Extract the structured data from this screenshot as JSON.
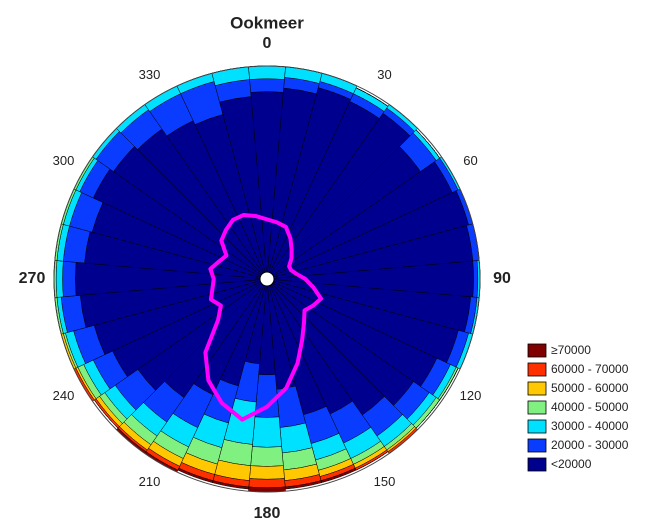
{
  "chart_data": {
    "type": "polar-stacked-bar",
    "title": "Ookmeer",
    "theta": [
      0,
      10,
      20,
      30,
      40,
      50,
      60,
      70,
      80,
      90,
      100,
      110,
      120,
      130,
      140,
      150,
      160,
      170,
      180,
      190,
      200,
      210,
      220,
      230,
      240,
      250,
      260,
      270,
      280,
      290,
      300,
      310,
      320,
      330,
      340,
      350
    ],
    "thetaticks": [
      0,
      30,
      60,
      90,
      120,
      150,
      180,
      210,
      240,
      270,
      300,
      330
    ],
    "rlim": [
      0,
      100
    ],
    "series": [
      {
        "name": "<20000",
        "color": "#00008f",
        "values": [
          88,
          90,
          93,
          92,
          95,
          88,
          96,
          98,
          97,
          97,
          96,
          93,
          88,
          84,
          78,
          70,
          66,
          52,
          45,
          40,
          52,
          60,
          68,
          74,
          80,
          84,
          88,
          90,
          86,
          85,
          90,
          88,
          86,
          82,
          80,
          86
        ]
      },
      {
        "name": "20000 - 30000",
        "color": "#0a3cff",
        "values": [
          6,
          5,
          3,
          4,
          3,
          9,
          3,
          2,
          3,
          2,
          3,
          5,
          7,
          9,
          12,
          15,
          14,
          18,
          20,
          18,
          18,
          17,
          14,
          13,
          10,
          10,
          9,
          6,
          10,
          11,
          7,
          10,
          11,
          14,
          16,
          8
        ]
      },
      {
        "name": "30000 - 40000",
        "color": "#00e0ff",
        "values": [
          6,
          5,
          4,
          3,
          2,
          2,
          1,
          0,
          0,
          1,
          1,
          2,
          3,
          4,
          6,
          8,
          8,
          12,
          14,
          20,
          12,
          10,
          8,
          6,
          5,
          4,
          2,
          3,
          3,
          3,
          2,
          2,
          3,
          4,
          4,
          6
        ]
      },
      {
        "name": "40000 - 50000",
        "color": "#80f080",
        "values": [
          0,
          0,
          0,
          0,
          0,
          0,
          0,
          0,
          0,
          0,
          0,
          0,
          1,
          2,
          2,
          3,
          5,
          8,
          9,
          10,
          8,
          6,
          5,
          3,
          3,
          1,
          1,
          1,
          1,
          1,
          1,
          0,
          0,
          0,
          0,
          0
        ]
      },
      {
        "name": "50000 - 60000",
        "color": "#ffc800",
        "values": [
          0,
          0,
          0,
          0,
          0,
          0,
          0,
          0,
          0,
          0,
          0,
          0,
          0,
          0,
          1,
          2,
          3,
          5,
          6,
          7,
          5,
          4,
          3,
          2,
          1,
          1,
          0,
          0,
          0,
          0,
          0,
          0,
          0,
          0,
          0,
          0
        ]
      },
      {
        "name": "60000 - 70000",
        "color": "#ff3000",
        "values": [
          0,
          0,
          0,
          0,
          0,
          0,
          0,
          0,
          0,
          0,
          0,
          0,
          0,
          0,
          1,
          1,
          2,
          3,
          4,
          3,
          3,
          2,
          1,
          1,
          1,
          0,
          0,
          0,
          0,
          0,
          0,
          0,
          0,
          0,
          0,
          0
        ]
      },
      {
        "name": "≥70000",
        "color": "#800000",
        "values": [
          0,
          0,
          0,
          0,
          0,
          0,
          0,
          0,
          0,
          0,
          0,
          0,
          0,
          0,
          0,
          0,
          1,
          1,
          2,
          1,
          1,
          1,
          1,
          0,
          0,
          0,
          0,
          0,
          0,
          0,
          0,
          0,
          0,
          0,
          0,
          0
        ]
      }
    ],
    "line": {
      "color": "#ff00ff",
      "values": [
        28,
        27,
        26,
        22,
        18,
        15,
        12,
        12,
        14,
        18,
        22,
        27,
        25,
        23,
        27,
        33,
        42,
        52,
        60,
        67,
        62,
        55,
        45,
        30,
        25,
        28,
        26,
        25,
        27,
        24,
        22,
        28,
        30,
        32,
        32,
        30
      ]
    }
  }
}
